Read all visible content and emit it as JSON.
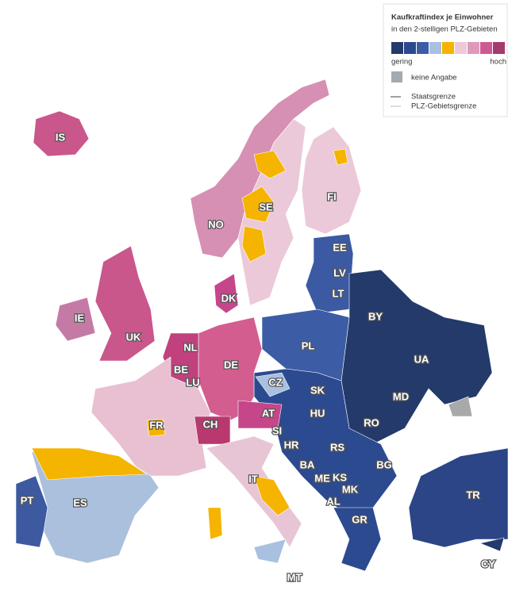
{
  "legend": {
    "title": "Kaufkraftindex je Einwohner",
    "subtitle": "in den 2-stelligen PLZ-Gebieten",
    "low": "gering",
    "high": "hoch",
    "no_data": "keine Angabe",
    "border_state": "Staatsgrenze",
    "border_postal": "PLZ-Gebietsgrenze"
  },
  "labels": [
    "IS",
    "NO",
    "SE",
    "FI",
    "EE",
    "LV",
    "LT",
    "DK",
    "IE",
    "UK",
    "NL",
    "BE",
    "LU",
    "DE",
    "PL",
    "BY",
    "UA",
    "CZ",
    "SK",
    "FR",
    "CH",
    "AT",
    "SI",
    "HU",
    "MD",
    "RO",
    "HR",
    "RS",
    "BA",
    "ME",
    "KS",
    "MK",
    "BG",
    "PT",
    "ES",
    "IT",
    "AL",
    "GR",
    "TR",
    "MT",
    "CY"
  ]
}
